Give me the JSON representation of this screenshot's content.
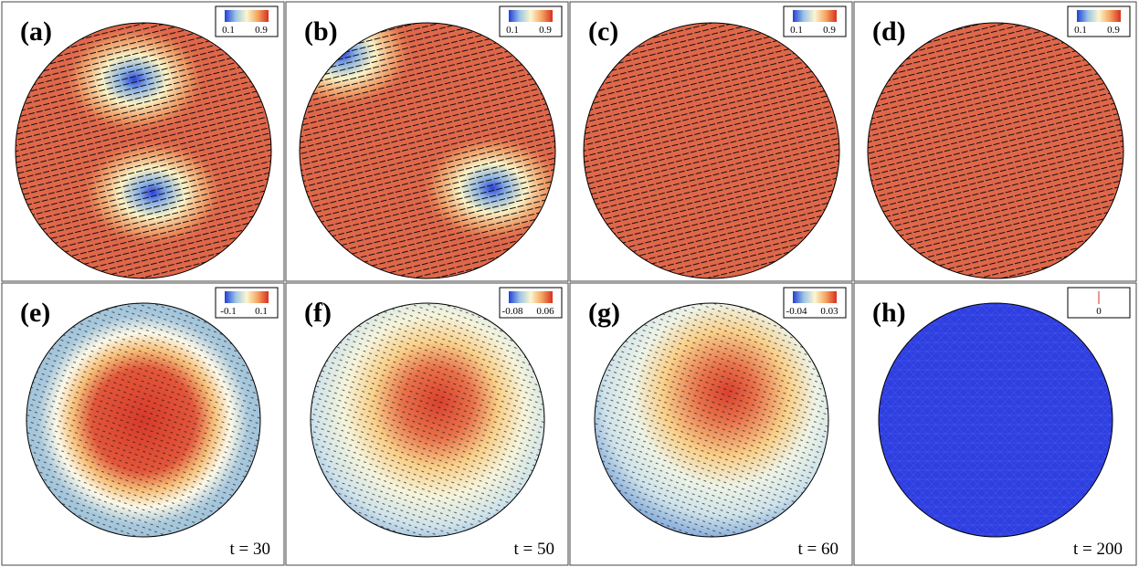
{
  "panels": [
    {
      "label": "(a)",
      "colorbar": [
        "0.1",
        "0.9"
      ]
    },
    {
      "label": "(b)",
      "colorbar": [
        "0.1",
        "0.9"
      ]
    },
    {
      "label": "(c)",
      "colorbar": [
        "0.1",
        "0.9"
      ]
    },
    {
      "label": "(d)",
      "colorbar": [
        "0.1",
        "0.9"
      ]
    },
    {
      "label": "(e)",
      "colorbar": [
        "-0.1",
        "0.1"
      ],
      "time": "t = 30"
    },
    {
      "label": "(f)",
      "colorbar": [
        "-0.08",
        "0.06"
      ],
      "time": "t = 50"
    },
    {
      "label": "(g)",
      "colorbar": [
        "-0.04",
        "0.03"
      ],
      "time": "t = 60"
    },
    {
      "label": "(h)",
      "colorbar": [
        "0"
      ],
      "time": "t = 200"
    }
  ]
}
